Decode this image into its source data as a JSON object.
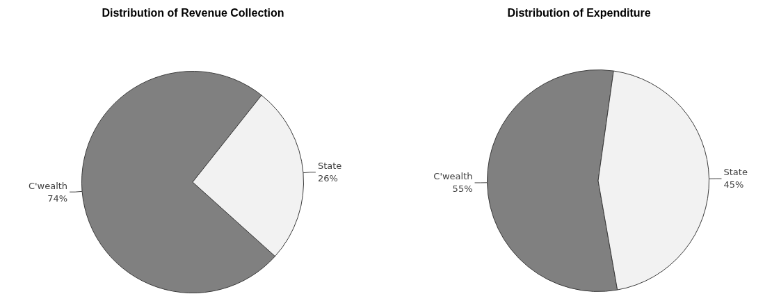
{
  "chart_data": [
    {
      "type": "pie",
      "title": "Distribution of Revenue Collection",
      "categories": [
        "C'wealth",
        "State"
      ],
      "values": [
        74,
        26
      ],
      "colors": [
        "#808080",
        "#f2f2f2"
      ],
      "value_labels": [
        "74%",
        "26%"
      ]
    },
    {
      "type": "pie",
      "title": "Distribution of Expenditure",
      "categories": [
        "C'wealth",
        "State"
      ],
      "values": [
        55,
        45
      ],
      "colors": [
        "#808080",
        "#f2f2f2"
      ],
      "value_labels": [
        "55%",
        "45%"
      ]
    }
  ]
}
